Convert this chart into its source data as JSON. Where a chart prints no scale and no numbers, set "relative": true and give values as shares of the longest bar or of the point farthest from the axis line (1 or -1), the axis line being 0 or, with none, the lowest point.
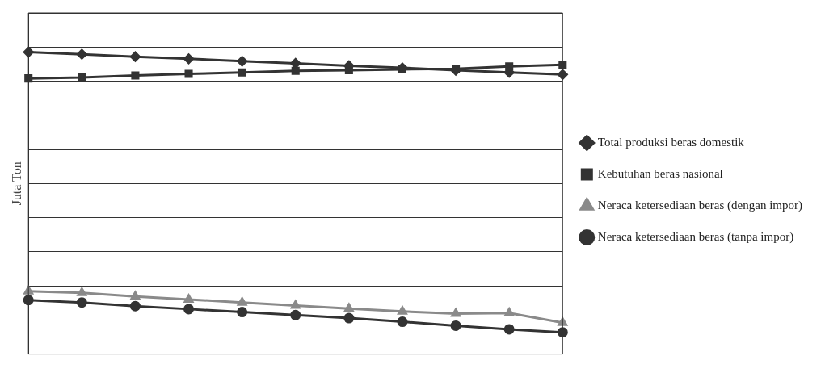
{
  "chart_data": {
    "type": "line",
    "ylabel": "Juta Ton",
    "relative": true,
    "grid": "y",
    "legend": "right",
    "line_style": "solid",
    "categories": [
      null,
      null,
      null,
      null,
      null,
      null,
      null,
      null,
      null,
      null,
      null
    ],
    "series": [
      {
        "name": "Total produksi beras domestik",
        "color": "#333333",
        "marker": "diamond",
        "values": [
          1,
          0.993,
          0.985,
          0.978,
          0.97,
          0.963,
          0.955,
          0.948,
          0.94,
          0.933,
          0.926
        ]
      },
      {
        "name": "Kebutuhan beras nasional",
        "color": "#333333",
        "marker": "square",
        "values": [
          0.913,
          0.916,
          0.923,
          0.928,
          0.933,
          0.938,
          0.94,
          0.943,
          0.945,
          0.953,
          0.958
        ]
      },
      {
        "name": "Neraca ketersediaan beras (dengan impor)",
        "color": "#8a8a8a",
        "marker": "triangle",
        "values": [
          0.208,
          0.203,
          0.191,
          0.181,
          0.171,
          0.161,
          0.151,
          0.141,
          0.134,
          0.136,
          0.104
        ]
      },
      {
        "name": "Neraca ketersediaan beras (tanpa impor)",
        "color": "#333333",
        "marker": "circle",
        "values": [
          0.179,
          0.171,
          0.159,
          0.149,
          0.139,
          0.129,
          0.119,
          0.107,
          0.094,
          0.082,
          0.072
        ]
      }
    ]
  }
}
